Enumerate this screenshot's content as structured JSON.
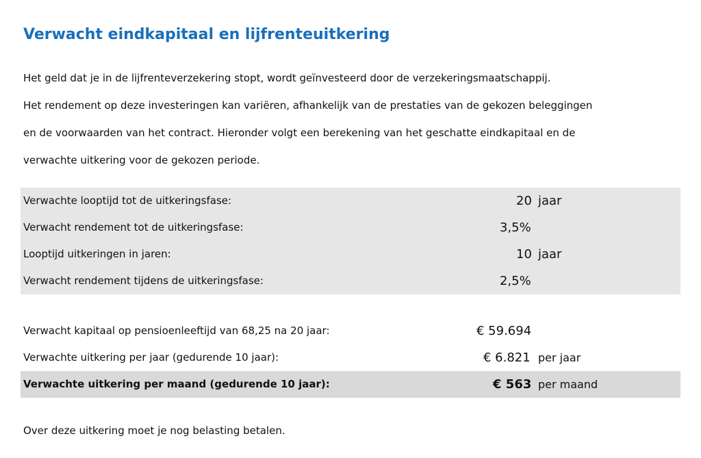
{
  "title": "Verwacht eindkapitaal en lijfrenteuitkering",
  "intro": [
    "Het geld dat je in de lijfrenteverzekering stopt, wordt geïnvesteerd door de verzekeringsmaatschappij.",
    "Het rendement op deze investeringen kan variëren, afhankelijk van de prestaties van de gekozen beleggingen",
    "en de voorwaarden van het contract. Hieronder volgt een berekening van het geschatte eindkapitaal en de",
    "verwachte uitkering voor de gekozen periode."
  ],
  "inputs": [
    {
      "label": "Verwachte looptijd tot de uitkeringsfase:",
      "value": "20",
      "unit": "jaar"
    },
    {
      "label": "Verwacht rendement tot de uitkeringsfase:",
      "value": "3,5%"
    },
    {
      "label": "Looptijd uitkeringen in jaren:",
      "value": "10",
      "unit": "jaar"
    },
    {
      "label": "Verwacht rendement tijdens de uitkeringsfase:",
      "value": "2,5%"
    }
  ],
  "results": [
    {
      "label": "Verwacht kapitaal op pensioenleeftijd van 68,25 na 20 jaar:",
      "value": "€ 59.694"
    },
    {
      "label": "Verwachte uitkering per jaar (gedurende 10 jaar):",
      "value": "€ 6.821",
      "unit": "per jaar"
    },
    {
      "label": "Verwachte uitkering per maand (gedurende 10 jaar):",
      "value": "€ 563",
      "unit": "per maand"
    }
  ],
  "footer": "Over deze uitkering moet je nog belasting betalen."
}
